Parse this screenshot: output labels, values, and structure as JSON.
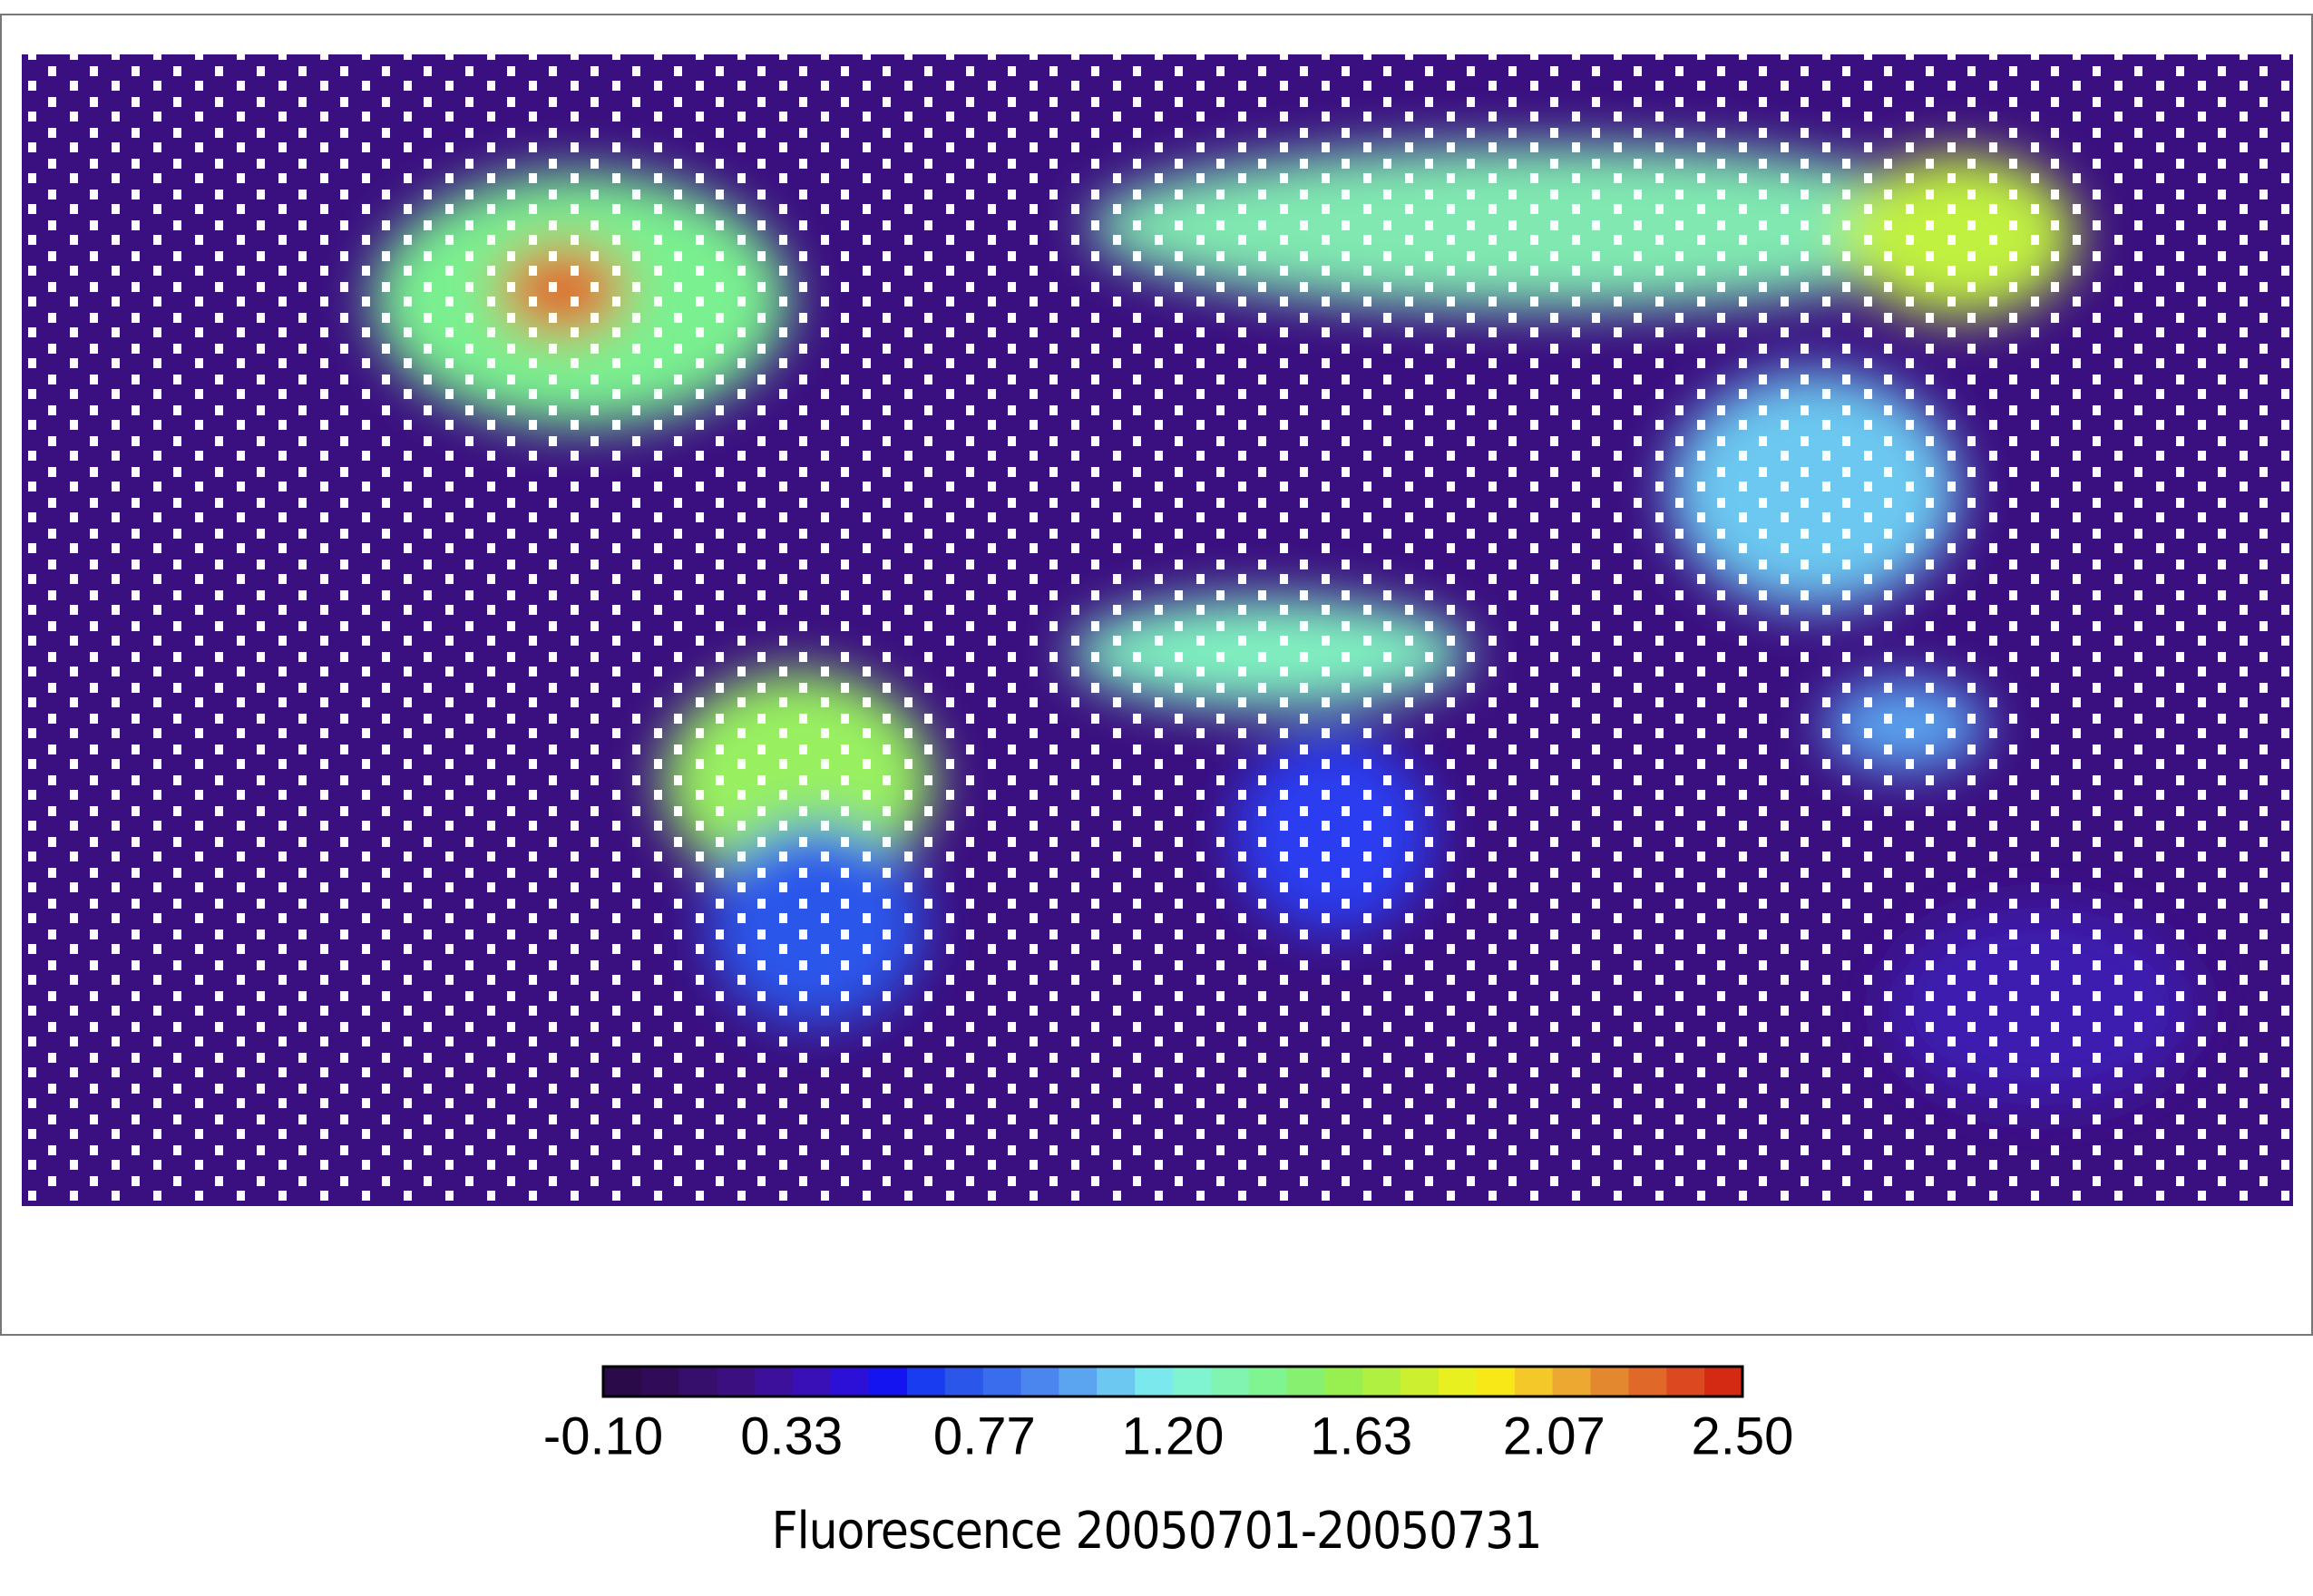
{
  "chart_data": {
    "type": "colormap",
    "title": "Fluorescence  20050701-20050731",
    "clim": [
      -0.1,
      2.5
    ],
    "ticks": [
      {
        "value": -0.1,
        "label": "-0.10"
      },
      0.33,
      0.77,
      {
        "value": 1.2,
        "label": "1.20"
      },
      1.63,
      2.07,
      {
        "value": 2.5,
        "label": "2.50"
      }
    ],
    "colorbar_colors": [
      "#2a0a48",
      "#300c58",
      "#360e6c",
      "#3b0f80",
      "#3c109a",
      "#3910b8",
      "#2c10d8",
      "#1414f0",
      "#1a3cf0",
      "#2a56ea",
      "#3a6cee",
      "#4a86ee",
      "#5aa4f0",
      "#6cc8f0",
      "#7ae8ec",
      "#80f4d0",
      "#80f4b0",
      "#80f490",
      "#88f070",
      "#98f050",
      "#b0f040",
      "#ccf030",
      "#e8f020",
      "#f8e818",
      "#f4c828",
      "#eca830",
      "#e48830",
      "#e06828",
      "#dc4820",
      "#d42a14"
    ]
  }
}
